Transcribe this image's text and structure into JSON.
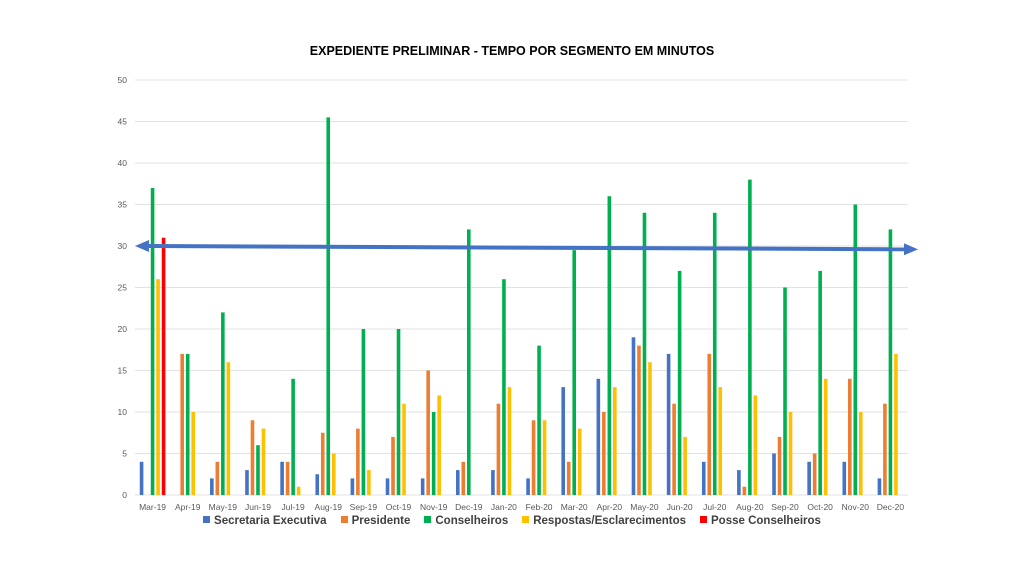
{
  "chart_data": {
    "type": "bar",
    "title": "EXPEDIENTE PRELIMINAR - TEMPO POR SEGMENTO EM MINUTOS",
    "xlabel": "",
    "ylabel": "",
    "ylim": [
      0,
      50
    ],
    "yticks": [
      "0",
      "5",
      "10",
      "15",
      "20",
      "25",
      "30",
      "35",
      "40",
      "45",
      "50"
    ],
    "grid": true,
    "legend_position": "bottom",
    "categories": [
      "Mar-19",
      "Apr-19",
      "May-19",
      "Jun-19",
      "Jul-19",
      "Aug-19",
      "Sep-19",
      "Oct-19",
      "Nov-19",
      "Dec-19",
      "Jan-20",
      "Feb-20",
      "Mar-20",
      "Apr-20",
      "May-20",
      "Jun-20",
      "Jul-20",
      "Aug-20",
      "Sep-20",
      "Oct-20",
      "Nov-20",
      "Dec-20"
    ],
    "series": [
      {
        "name": "Secretaria Executiva",
        "color": "#4472C4",
        "values": [
          4,
          0,
          2,
          3,
          4,
          2.5,
          2,
          2,
          2,
          3,
          3,
          2,
          13,
          14,
          19,
          17,
          4,
          3,
          5,
          4,
          4,
          2
        ]
      },
      {
        "name": "Presidente",
        "color": "#ED7D31",
        "values": [
          0,
          17,
          4,
          9,
          4,
          7.5,
          8,
          7,
          15,
          4,
          11,
          9,
          4,
          10,
          18,
          11,
          17,
          1,
          7,
          5,
          14,
          11
        ]
      },
      {
        "name": "Conselheiros",
        "color": "#00B050",
        "values": [
          37,
          17,
          22,
          6,
          14,
          45.5,
          20,
          20,
          10,
          32,
          26,
          18,
          29.5,
          36,
          34,
          27,
          34,
          38,
          25,
          27,
          35,
          32
        ]
      },
      {
        "name": "Respostas/Esclarecimentos",
        "color": "#FFC000",
        "values": [
          26,
          10,
          16,
          8,
          1,
          5,
          3,
          11,
          12,
          0,
          13,
          9,
          8,
          13,
          16,
          7,
          13,
          12,
          10,
          14,
          10,
          17
        ]
      },
      {
        "name": "Posse Conselheiros",
        "color": "#FF0000",
        "values": [
          31,
          0,
          0,
          0,
          0,
          0,
          0,
          0,
          0,
          0,
          0,
          0,
          0,
          0,
          0,
          0,
          0,
          0,
          0,
          0,
          0,
          0
        ]
      }
    ],
    "annotations": [
      {
        "type": "double-arrow",
        "color": "#4472C4",
        "from": {
          "x": "Mar-19",
          "y": 30
        },
        "to": {
          "x": "Dec-20",
          "y": 29.6
        }
      }
    ]
  }
}
